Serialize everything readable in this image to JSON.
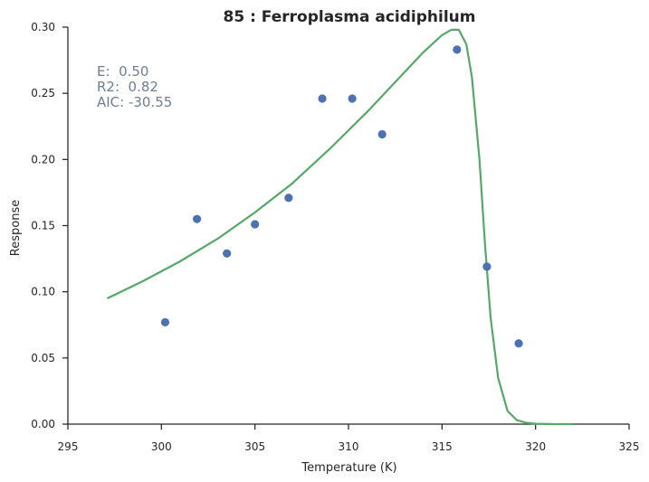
{
  "chart_data": {
    "type": "scatter",
    "title": "85 : Ferroplasma acidiphilum",
    "xlabel": "Temperature (K)",
    "ylabel": "Response",
    "xlim": [
      295,
      325
    ],
    "ylim": [
      0.0,
      0.3
    ],
    "xticks": [
      295,
      300,
      305,
      310,
      315,
      320,
      325
    ],
    "yticks": [
      0.0,
      0.05,
      0.1,
      0.15,
      0.2,
      0.25,
      0.3
    ],
    "xtick_labels": [
      "295",
      "300",
      "305",
      "310",
      "315",
      "320",
      "325"
    ],
    "ytick_labels": [
      "0.00",
      "0.05",
      "0.10",
      "0.15",
      "0.20",
      "0.25",
      "0.30"
    ],
    "grid": false,
    "annotations": [
      "E:  0.50",
      "R2:  0.82",
      "AIC: -30.55"
    ],
    "series": [
      {
        "kind": "scatter",
        "color": "#4c72b0",
        "x": [
          300.2,
          301.9,
          303.5,
          305.0,
          306.8,
          308.6,
          310.2,
          311.8,
          315.8,
          317.4,
          319.1
        ],
        "y": [
          0.077,
          0.155,
          0.129,
          0.151,
          0.171,
          0.246,
          0.246,
          0.219,
          0.283,
          0.119,
          0.061
        ]
      },
      {
        "kind": "line",
        "color": "#55a868",
        "x": [
          297.1,
          299.0,
          301.0,
          303.0,
          305.0,
          307.0,
          309.0,
          311.0,
          312.0,
          313.0,
          314.0,
          315.0,
          315.5,
          315.9,
          316.3,
          316.6,
          317.0,
          317.3,
          317.6,
          318.0,
          318.5,
          319.0,
          319.5,
          320.0,
          321.0,
          322.0
        ],
        "y": [
          0.095,
          0.108,
          0.123,
          0.14,
          0.16,
          0.182,
          0.208,
          0.236,
          0.251,
          0.266,
          0.281,
          0.294,
          0.298,
          0.298,
          0.287,
          0.262,
          0.2,
          0.135,
          0.08,
          0.035,
          0.01,
          0.003,
          0.001,
          0.0003,
          0.0,
          0.0
        ]
      }
    ]
  }
}
